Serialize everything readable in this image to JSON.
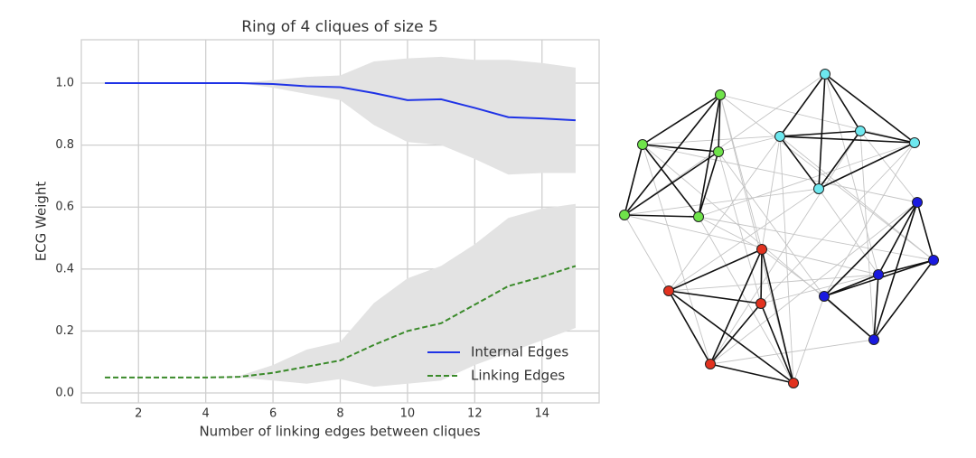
{
  "chart_data": {
    "type": "line",
    "title": "Ring of 4 cliques of size 5",
    "xlabel": "Number of linking edges between cliques",
    "ylabel": "ECG Weight",
    "x": [
      1,
      2,
      3,
      4,
      5,
      6,
      7,
      8,
      9,
      10,
      11,
      12,
      13,
      14,
      15
    ],
    "series": [
      {
        "name": "Internal Edges",
        "color": "#1f33e6",
        "dash": "solid",
        "values": [
          1,
          1,
          1,
          1,
          1,
          0.997,
          0.99,
          0.987,
          0.968,
          0.945,
          0.948,
          0.92,
          0.89,
          0.886,
          0.88
        ],
        "upper": [
          1,
          1,
          1,
          1,
          1,
          1.01,
          1.02,
          1.025,
          1.07,
          1.08,
          1.085,
          1.075,
          1.075,
          1.065,
          1.05
        ],
        "lower": [
          1,
          1,
          1,
          1,
          1,
          0.985,
          0.965,
          0.945,
          0.865,
          0.81,
          0.8,
          0.755,
          0.705,
          0.71,
          0.71
        ]
      },
      {
        "name": "Linking Edges",
        "color": "#3a8a2a",
        "dash": "dashed",
        "values": [
          0.05,
          0.05,
          0.05,
          0.05,
          0.052,
          0.065,
          0.085,
          0.105,
          0.155,
          0.2,
          0.225,
          0.285,
          0.345,
          0.375,
          0.41
        ],
        "upper": [
          0.05,
          0.05,
          0.05,
          0.05,
          0.055,
          0.09,
          0.14,
          0.165,
          0.29,
          0.37,
          0.41,
          0.48,
          0.565,
          0.595,
          0.61
        ],
        "lower": [
          0.05,
          0.05,
          0.05,
          0.05,
          0.05,
          0.04,
          0.03,
          0.045,
          0.02,
          0.03,
          0.04,
          0.09,
          0.13,
          0.17,
          0.21
        ]
      }
    ],
    "band_color": "#e3e3e3",
    "xlim": [
      0.3,
      15.7
    ],
    "xticks": [
      2,
      4,
      6,
      8,
      10,
      12,
      14
    ],
    "ylim": [
      -0.032,
      1.14
    ],
    "yticks": [
      {
        "value": 0,
        "label": "0.0"
      },
      0.2,
      0.4,
      0.6,
      0.8,
      {
        "value": 1,
        "label": "1.0"
      }
    ],
    "grid": true,
    "legend": "lower right"
  }
}
